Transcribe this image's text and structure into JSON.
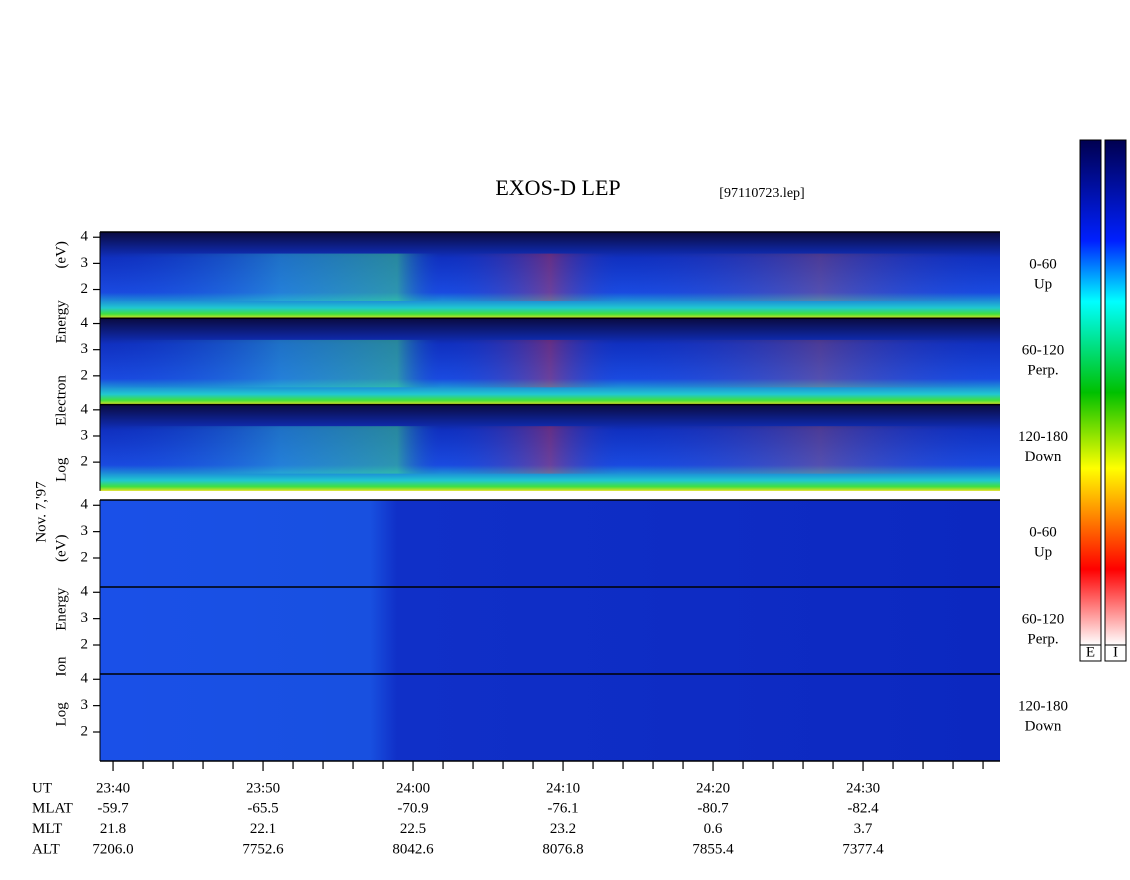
{
  "chart_data": {
    "type": "spectrogram",
    "title": "EXOS-D LEP",
    "subtitle": "[97110723.lep]",
    "date_label": "Nov. 7,'97",
    "xlim": [
      -0.87,
      59.13
    ],
    "xticks": [
      {
        "value": 0,
        "label": "23:40"
      },
      {
        "value": 10,
        "label": "23:50"
      },
      {
        "value": 20,
        "label": "24:00"
      },
      {
        "value": 30,
        "label": "24:10"
      },
      {
        "value": 40,
        "label": "24:20"
      },
      {
        "value": 50,
        "label": "24:30"
      }
    ],
    "xminorticks": [
      2,
      4,
      6,
      8,
      12,
      14,
      16,
      18,
      22,
      24,
      26,
      28,
      32,
      34,
      36,
      38,
      42,
      44,
      46,
      48,
      52,
      54,
      56,
      58
    ],
    "groups": [
      {
        "label": "Log Electron Energy (eV)",
        "panels": [
          {
            "pitch": "0-60",
            "direction": "Up",
            "ylim": [
              0.9,
              4.2
            ],
            "yticks": [
              2,
              3,
              4
            ]
          },
          {
            "pitch": "60-120",
            "direction": "Perp.",
            "ylim": [
              0.9,
              4.2
            ],
            "yticks": [
              2,
              3,
              4
            ]
          },
          {
            "pitch": "120-180",
            "direction": "Down",
            "ylim": [
              0.9,
              4.2
            ],
            "yticks": [
              2,
              3,
              4
            ]
          }
        ]
      },
      {
        "label": "Log Ion Energy (eV)",
        "panels": [
          {
            "pitch": "0-60",
            "direction": "Up",
            "ylim": [
              0.9,
              4.2
            ],
            "yticks": [
              2,
              3,
              4
            ]
          },
          {
            "pitch": "60-120",
            "direction": "Perp.",
            "ylim": [
              0.9,
              4.2
            ],
            "yticks": [
              2,
              3,
              4
            ]
          },
          {
            "pitch": "120-180",
            "direction": "Down",
            "ylim": [
              0.9,
              4.2
            ],
            "yticks": [
              2,
              3,
              4
            ]
          }
        ]
      }
    ],
    "colorbar_labels": [
      "E",
      "I"
    ],
    "orbit": [
      {
        "label": "UT",
        "values": []
      },
      {
        "label": "MLAT",
        "values": [
          "-59.7",
          "-65.5",
          "-70.9",
          "-76.1",
          "-80.7",
          "-82.4"
        ]
      },
      {
        "label": "MLT",
        "values": [
          "21.8",
          "22.1",
          "22.5",
          "23.2",
          "0.6",
          "3.7"
        ]
      },
      {
        "label": "ALT",
        "values": [
          "7206.0",
          "7752.6",
          "8042.6",
          "8076.8",
          "7855.4",
          "7377.4"
        ]
      }
    ]
  }
}
